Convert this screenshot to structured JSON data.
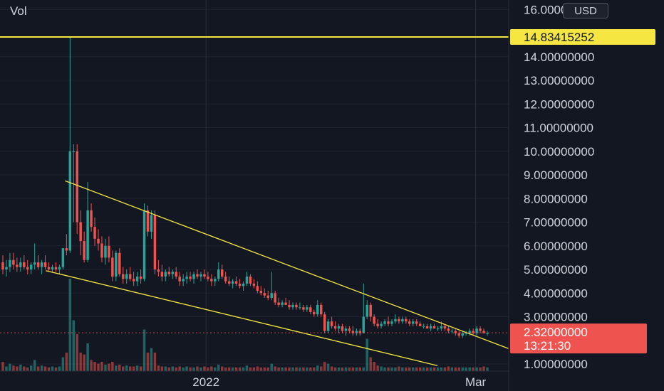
{
  "header": {
    "indicator_label": "Vol",
    "currency_button": "USD"
  },
  "chart_data": {
    "type": "candlestick",
    "y_axis": {
      "ylim": [
        0.7,
        16.4
      ],
      "ticks": [
        1,
        3,
        4,
        5,
        6,
        7,
        8,
        9,
        10,
        11,
        12,
        13,
        14,
        16
      ],
      "tick_labels": [
        "1.00000000",
        "3.00000000",
        "4.00000000",
        "5.00000000",
        "6.00000000",
        "7.00000000",
        "8.00000000",
        "9.00000000",
        "10.00000000",
        "11.00000000",
        "12.00000000",
        "13.00000000",
        "14.00000000",
        "16.00000000"
      ]
    },
    "x_axis": {
      "ticks": [
        {
          "t": 0.405,
          "label": "2022"
        },
        {
          "t": 0.935,
          "label": "Mar"
        }
      ]
    },
    "horizontal_line": {
      "value": 14.83415252,
      "label": "14.83415252",
      "color": "#f5e642"
    },
    "last_price": {
      "value": 2.32,
      "label": "2.32000000",
      "countdown": "13:21:30",
      "color": "#ef5350"
    },
    "trendlines": [
      {
        "from": [
          0.128,
          8.75
        ],
        "to": [
          1.0,
          1.65
        ],
        "color": "#f5e642"
      },
      {
        "from": [
          0.09,
          4.95
        ],
        "to": [
          0.86,
          0.93
        ],
        "color": "#f5e642"
      }
    ],
    "colors": {
      "up": "#26a69a",
      "down": "#ef5350",
      "grid": "#2a2e39",
      "background": "#131722"
    },
    "grid": true,
    "candles": [
      [
        5.3,
        5.6,
        4.8,
        5.0
      ],
      [
        5.0,
        5.4,
        4.7,
        5.1
      ],
      [
        5.1,
        5.7,
        4.9,
        5.4
      ],
      [
        5.4,
        5.7,
        5.0,
        5.2
      ],
      [
        5.2,
        5.5,
        4.9,
        5.1
      ],
      [
        5.1,
        5.5,
        4.9,
        5.3
      ],
      [
        5.3,
        5.6,
        5.0,
        5.1
      ],
      [
        5.1,
        5.4,
        4.8,
        5.0
      ],
      [
        5.0,
        5.3,
        4.8,
        5.2
      ],
      [
        5.2,
        6.1,
        5.0,
        5.3
      ],
      [
        5.3,
        5.6,
        5.0,
        5.1
      ],
      [
        5.1,
        5.4,
        4.8,
        5.3
      ],
      [
        5.3,
        5.6,
        5.0,
        5.1
      ],
      [
        5.1,
        5.3,
        4.9,
        5.0
      ],
      [
        5.0,
        5.2,
        4.9,
        5.1
      ],
      [
        5.1,
        5.3,
        4.9,
        5.0
      ],
      [
        5.0,
        5.2,
        4.8,
        5.1
      ],
      [
        5.1,
        5.9,
        5.0,
        5.9
      ],
      [
        5.9,
        6.5,
        5.6,
        5.8
      ],
      [
        5.8,
        14.83,
        5.7,
        10.0
      ],
      [
        10.0,
        10.3,
        7.0,
        10.0
      ],
      [
        10.0,
        10.3,
        6.5,
        7.0
      ],
      [
        7.0,
        7.5,
        5.6,
        6.2
      ],
      [
        6.2,
        6.6,
        5.3,
        5.4
      ],
      [
        5.4,
        8.7,
        5.3,
        7.5
      ],
      [
        7.5,
        7.8,
        6.6,
        6.8
      ],
      [
        6.8,
        7.2,
        6.0,
        6.3
      ],
      [
        6.3,
        6.7,
        5.8,
        6.1
      ],
      [
        6.1,
        6.4,
        5.3,
        5.5
      ],
      [
        5.5,
        6.3,
        5.2,
        6.0
      ],
      [
        6.0,
        6.4,
        5.3,
        5.5
      ],
      [
        5.5,
        5.8,
        4.5,
        4.7
      ],
      [
        4.7,
        5.8,
        4.5,
        5.7
      ],
      [
        5.7,
        5.9,
        4.7,
        4.8
      ],
      [
        4.8,
        5.1,
        4.4,
        4.6
      ],
      [
        4.6,
        5.0,
        4.4,
        4.8
      ],
      [
        4.8,
        5.1,
        4.5,
        4.6
      ],
      [
        4.6,
        4.9,
        4.3,
        4.5
      ],
      [
        4.5,
        4.9,
        4.3,
        4.7
      ],
      [
        4.7,
        5.0,
        4.4,
        4.6
      ],
      [
        4.6,
        7.8,
        4.5,
        7.5
      ],
      [
        7.5,
        7.7,
        6.4,
        6.6
      ],
      [
        6.6,
        7.5,
        6.3,
        7.3
      ],
      [
        7.3,
        7.5,
        4.8,
        5.0
      ],
      [
        5.0,
        5.4,
        4.7,
        4.9
      ],
      [
        4.9,
        5.2,
        4.5,
        4.7
      ],
      [
        4.7,
        5.0,
        4.5,
        4.9
      ],
      [
        4.9,
        5.1,
        4.7,
        4.8
      ],
      [
        4.8,
        5.0,
        4.6,
        4.9
      ],
      [
        4.9,
        5.1,
        4.6,
        4.7
      ],
      [
        4.7,
        4.9,
        4.3,
        4.5
      ],
      [
        4.5,
        4.8,
        4.3,
        4.6
      ],
      [
        4.6,
        4.9,
        4.4,
        4.7
      ],
      [
        4.7,
        4.9,
        4.5,
        4.6
      ],
      [
        4.6,
        4.9,
        4.4,
        4.8
      ],
      [
        4.8,
        5.0,
        4.6,
        4.7
      ],
      [
        4.7,
        4.9,
        4.5,
        4.8
      ],
      [
        4.8,
        5.0,
        4.6,
        4.7
      ],
      [
        4.7,
        4.9,
        4.5,
        4.6
      ],
      [
        4.6,
        4.8,
        4.3,
        4.5
      ],
      [
        4.5,
        4.7,
        4.3,
        4.6
      ],
      [
        4.6,
        5.3,
        4.5,
        5.0
      ],
      [
        5.0,
        5.2,
        4.6,
        4.7
      ],
      [
        4.7,
        4.9,
        4.4,
        4.5
      ],
      [
        4.5,
        4.7,
        4.3,
        4.4
      ],
      [
        4.4,
        4.6,
        4.2,
        4.5
      ],
      [
        4.5,
        4.7,
        4.3,
        4.4
      ],
      [
        4.4,
        4.6,
        4.2,
        4.3
      ],
      [
        4.3,
        4.5,
        4.1,
        4.4
      ],
      [
        4.4,
        4.9,
        4.3,
        4.7
      ],
      [
        4.7,
        4.8,
        4.3,
        4.4
      ],
      [
        4.4,
        4.6,
        4.2,
        4.3
      ],
      [
        4.3,
        4.5,
        4.0,
        4.1
      ],
      [
        4.1,
        4.3,
        3.9,
        4.0
      ],
      [
        4.0,
        4.2,
        3.8,
        3.9
      ],
      [
        3.9,
        4.1,
        3.7,
        3.8
      ],
      [
        3.8,
        4.9,
        3.7,
        4.0
      ],
      [
        4.0,
        4.1,
        3.5,
        3.6
      ],
      [
        3.6,
        3.8,
        3.4,
        3.5
      ],
      [
        3.5,
        3.7,
        3.4,
        3.6
      ],
      [
        3.6,
        3.8,
        3.5,
        3.5
      ],
      [
        3.5,
        3.7,
        3.3,
        3.4
      ],
      [
        3.4,
        3.6,
        3.3,
        3.5
      ],
      [
        3.5,
        3.6,
        3.3,
        3.4
      ],
      [
        3.4,
        3.6,
        3.3,
        3.4
      ],
      [
        3.4,
        3.5,
        3.2,
        3.3
      ],
      [
        3.3,
        3.5,
        3.2,
        3.4
      ],
      [
        3.4,
        3.5,
        3.1,
        3.2
      ],
      [
        3.2,
        3.3,
        3.0,
        3.1
      ],
      [
        3.1,
        3.7,
        3.0,
        3.5
      ],
      [
        3.5,
        3.6,
        3.0,
        3.1
      ],
      [
        3.1,
        3.2,
        2.3,
        2.4
      ],
      [
        2.4,
        2.9,
        2.3,
        2.8
      ],
      [
        2.8,
        3.0,
        2.5,
        2.6
      ],
      [
        2.6,
        2.8,
        2.4,
        2.5
      ],
      [
        2.5,
        2.7,
        2.3,
        2.6
      ],
      [
        2.6,
        2.7,
        2.3,
        2.4
      ],
      [
        2.4,
        2.6,
        2.2,
        2.5
      ],
      [
        2.5,
        2.6,
        2.3,
        2.4
      ],
      [
        2.4,
        2.6,
        2.2,
        2.3
      ],
      [
        2.3,
        2.5,
        2.2,
        2.4
      ],
      [
        2.4,
        2.5,
        2.2,
        2.3
      ],
      [
        2.3,
        4.4,
        2.3,
        3.0
      ],
      [
        3.0,
        3.7,
        2.9,
        3.5
      ],
      [
        3.5,
        3.6,
        2.8,
        3.0
      ],
      [
        3.0,
        3.1,
        2.6,
        2.7
      ],
      [
        2.7,
        2.9,
        2.5,
        2.6
      ],
      [
        2.6,
        2.8,
        2.5,
        2.7
      ],
      [
        2.7,
        2.9,
        2.6,
        2.8
      ],
      [
        2.8,
        3.0,
        2.6,
        2.7
      ],
      [
        2.7,
        2.9,
        2.6,
        2.8
      ],
      [
        2.8,
        3.1,
        2.7,
        2.9
      ],
      [
        2.9,
        3.0,
        2.7,
        2.8
      ],
      [
        2.8,
        3.0,
        2.7,
        2.9
      ],
      [
        2.9,
        3.0,
        2.7,
        2.8
      ],
      [
        2.8,
        2.9,
        2.6,
        2.7
      ],
      [
        2.7,
        2.9,
        2.6,
        2.8
      ],
      [
        2.8,
        2.9,
        2.6,
        2.7
      ],
      [
        2.7,
        2.8,
        2.6,
        2.6
      ],
      [
        2.6,
        2.7,
        2.5,
        2.6
      ],
      [
        2.6,
        2.7,
        2.5,
        2.5
      ],
      [
        2.5,
        2.7,
        2.4,
        2.6
      ],
      [
        2.6,
        2.7,
        2.5,
        2.5
      ],
      [
        2.5,
        2.6,
        2.4,
        2.5
      ],
      [
        2.5,
        2.8,
        2.4,
        2.6
      ],
      [
        2.6,
        2.7,
        2.4,
        2.5
      ],
      [
        2.5,
        2.6,
        2.3,
        2.4
      ],
      [
        2.4,
        2.5,
        2.3,
        2.4
      ],
      [
        2.4,
        2.5,
        2.2,
        2.3
      ],
      [
        2.3,
        2.4,
        2.1,
        2.2
      ],
      [
        2.2,
        2.4,
        2.1,
        2.3
      ],
      [
        2.3,
        2.4,
        2.2,
        2.3
      ],
      [
        2.3,
        2.5,
        2.2,
        2.4
      ],
      [
        2.4,
        2.5,
        2.2,
        2.3
      ],
      [
        2.3,
        2.6,
        2.2,
        2.5
      ],
      [
        2.5,
        2.6,
        2.3,
        2.4
      ],
      [
        2.4,
        2.5,
        2.3,
        2.3
      ],
      [
        2.3,
        2.4,
        2.2,
        2.3
      ]
    ],
    "volume": [
      0.1,
      0.05,
      0.08,
      0.06,
      0.05,
      0.07,
      0.05,
      0.04,
      0.06,
      0.12,
      0.05,
      0.06,
      0.05,
      0.04,
      0.05,
      0.04,
      0.05,
      0.15,
      0.2,
      1.0,
      0.55,
      0.4,
      0.2,
      0.18,
      0.3,
      0.12,
      0.1,
      0.08,
      0.1,
      0.07,
      0.08,
      0.1,
      0.06,
      0.07,
      0.05,
      0.06,
      0.05,
      0.05,
      0.06,
      0.05,
      0.45,
      0.2,
      0.25,
      0.2,
      0.06,
      0.05,
      0.05,
      0.04,
      0.05,
      0.04,
      0.05,
      0.04,
      0.05,
      0.04,
      0.04,
      0.05,
      0.04,
      0.05,
      0.04,
      0.05,
      0.04,
      0.07,
      0.05,
      0.04,
      0.04,
      0.04,
      0.04,
      0.04,
      0.04,
      0.06,
      0.04,
      0.04,
      0.05,
      0.04,
      0.04,
      0.04,
      0.08,
      0.05,
      0.04,
      0.04,
      0.04,
      0.04,
      0.04,
      0.04,
      0.04,
      0.04,
      0.04,
      0.04,
      0.04,
      0.06,
      0.05,
      0.1,
      0.08,
      0.05,
      0.04,
      0.04,
      0.04,
      0.04,
      0.04,
      0.04,
      0.04,
      0.04,
      0.04,
      0.35,
      0.15,
      0.1,
      0.06,
      0.05,
      0.04,
      0.04,
      0.04,
      0.04,
      0.05,
      0.04,
      0.04,
      0.04,
      0.04,
      0.04,
      0.04,
      0.04,
      0.04,
      0.04,
      0.04,
      0.04,
      0.04,
      0.04,
      0.05,
      0.04,
      0.04,
      0.04,
      0.04,
      0.04,
      0.04,
      0.04,
      0.04,
      0.04,
      0.05,
      0.04,
      0.04,
      0.04
    ]
  }
}
